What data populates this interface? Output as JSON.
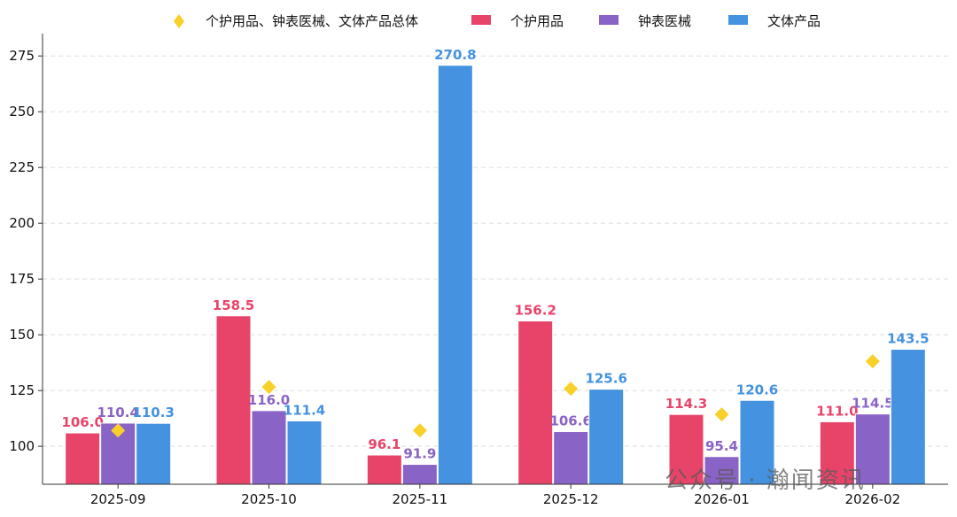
{
  "chart_data": {
    "type": "bar",
    "categories": [
      "2025-09",
      "2025-10",
      "2025-11",
      "2025-12",
      "2026-01",
      "2026-02"
    ],
    "series": [
      {
        "name": "个护用品",
        "color": "#e8446a",
        "values": [
          106.0,
          158.5,
          96.1,
          156.2,
          114.3,
          111.0
        ]
      },
      {
        "name": "钟表医械",
        "color": "#8a63c6",
        "values": [
          110.4,
          116.0,
          91.9,
          106.6,
          95.4,
          114.5
        ]
      },
      {
        "name": "文体产品",
        "color": "#4492e0",
        "values": [
          110.3,
          111.4,
          270.8,
          125.6,
          120.6,
          143.5
        ]
      }
    ],
    "overlay": {
      "name": "个护用品、钟表医械、文体产品总体",
      "type": "scatter",
      "marker": "diamond",
      "color": "#f9cf2a",
      "values": [
        107.1,
        126.6,
        107.1,
        125.8,
        114.3,
        138.1
      ]
    },
    "ylim": [
      83,
      285
    ],
    "yticks": [
      100,
      125,
      150,
      175,
      200,
      225,
      250,
      275
    ],
    "grid": "y-dashed",
    "legend": "top",
    "title": "",
    "xlabel": "",
    "ylabel": ""
  },
  "watermark": "公众号 · 瀚闻资讯"
}
